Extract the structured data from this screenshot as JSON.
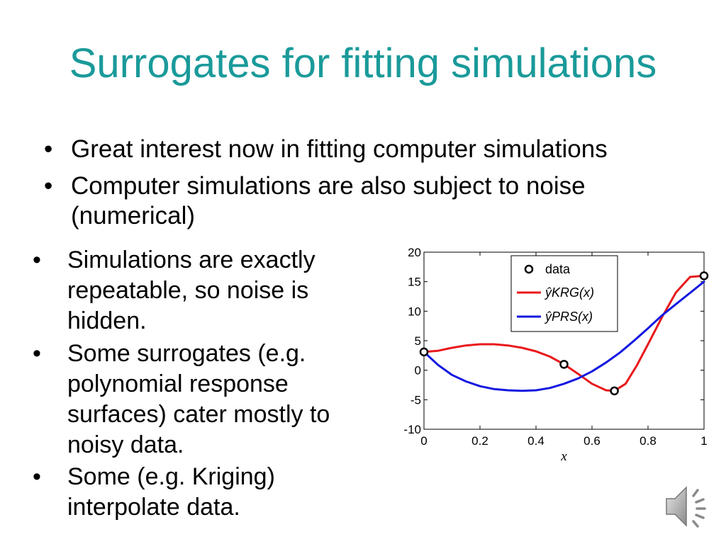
{
  "slide": {
    "title": "Surrogates for fitting simulations",
    "top_bullets": [
      "Great interest now in fitting computer simulations",
      "Computer simulations are also subject to noise (numerical)"
    ],
    "left_bullets": [
      "Simulations are exactly repeatable, so noise is hidden.",
      "Some surrogates  (e.g. polynomial response surfaces) cater mostly to noisy data.",
      "Some (e.g. Kriging) interpolate data."
    ]
  },
  "colors": {
    "title": "#1a9a9a",
    "krg": "#e8191c",
    "prs": "#1418e0",
    "data": "#000000"
  },
  "icons": {
    "audio": "speaker-icon"
  },
  "chart_data": {
    "type": "line",
    "xlabel": "x",
    "ylabel": "",
    "xlim": [
      0,
      1
    ],
    "ylim": [
      -10,
      20
    ],
    "x_ticks": [
      "0",
      "0.2",
      "0.4",
      "0.6",
      "0.8",
      "1"
    ],
    "y_ticks": [
      "20",
      "15",
      "10",
      "5",
      "0",
      "-5",
      "-10"
    ],
    "legend": {
      "position": "top-right",
      "entries": [
        "data",
        "ŷKRG(x)",
        "ŷPRS(x)"
      ]
    },
    "data_points": {
      "name": "data",
      "x": [
        0,
        0.5,
        0.68,
        1
      ],
      "y": [
        3.1,
        1.0,
        -3.5,
        16.0
      ]
    },
    "series": [
      {
        "name": "ŷKRG(x)",
        "x": [
          0,
          0.05,
          0.1,
          0.15,
          0.2,
          0.25,
          0.3,
          0.35,
          0.4,
          0.45,
          0.5,
          0.55,
          0.6,
          0.65,
          0.68,
          0.72,
          0.76,
          0.8,
          0.85,
          0.9,
          0.95,
          1.0
        ],
        "y": [
          3.1,
          3.3,
          3.8,
          4.2,
          4.4,
          4.4,
          4.2,
          3.8,
          3.2,
          2.3,
          1.0,
          -0.6,
          -2.3,
          -3.4,
          -3.5,
          -2.3,
          0.8,
          4.4,
          9.0,
          13.2,
          15.8,
          16.0
        ]
      },
      {
        "name": "ŷPRS(x)",
        "x": [
          0,
          0.05,
          0.1,
          0.15,
          0.2,
          0.25,
          0.3,
          0.35,
          0.4,
          0.45,
          0.5,
          0.55,
          0.6,
          0.65,
          0.7,
          0.75,
          0.8,
          0.85,
          0.9,
          0.95,
          1.0
        ],
        "y": [
          3.1,
          0.9,
          -0.8,
          -1.9,
          -2.7,
          -3.2,
          -3.4,
          -3.5,
          -3.4,
          -3.0,
          -2.3,
          -1.4,
          -0.2,
          1.3,
          3.0,
          5.0,
          7.1,
          9.3,
          11.2,
          13.1,
          15.0
        ]
      }
    ]
  }
}
